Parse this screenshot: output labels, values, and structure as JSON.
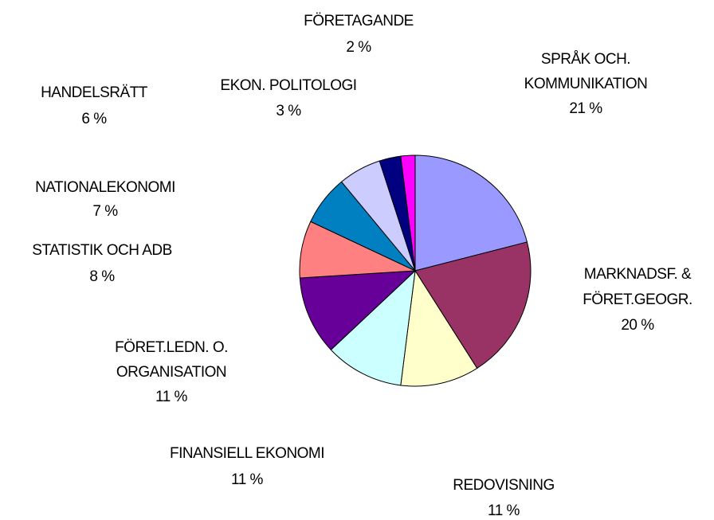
{
  "chart_data": {
    "type": "pie",
    "categories": [
      [
        "SPRÅK OCH.",
        "KOMMUNIKATION"
      ],
      [
        "MARKNADSF. &",
        "FÖRET.GEOGR."
      ],
      [
        "REDOVISNING"
      ],
      [
        "FINANSIELL EKONOMI"
      ],
      [
        "FÖRET.LEDN. O.",
        "ORGANISATION"
      ],
      [
        "STATISTIK OCH ADB"
      ],
      [
        "NATIONALEKONOMI"
      ],
      [
        "HANDELSRÄTT"
      ],
      [
        "EKON. POLITOLOGI"
      ],
      [
        "FÖRETAGANDE"
      ]
    ],
    "values": [
      21,
      20,
      11,
      11,
      11,
      8,
      7,
      6,
      3,
      2
    ],
    "value_labels": [
      "21 %",
      "20 %",
      "11 %",
      "11 %",
      "11 %",
      "8 %",
      "7 %",
      "6 %",
      "3 %",
      "2 %"
    ],
    "colors": [
      "#9999ff",
      "#993366",
      "#ffffcc",
      "#ccffff",
      "#660099",
      "#ff8080",
      "#0080c0",
      "#ccccff",
      "#000080",
      "#ff00ff"
    ]
  }
}
